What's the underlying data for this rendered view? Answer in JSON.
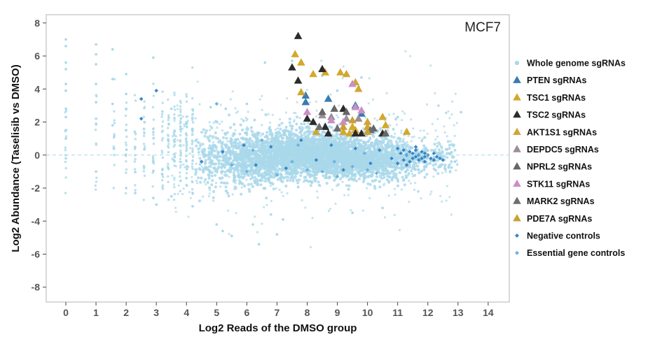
{
  "chart_data": {
    "type": "scatter",
    "panel_label": "MCF7",
    "xlabel": "Log2 Reads of the DMSO group",
    "ylabel": "Log2 Abundance (Taselisib vs DMSO)",
    "xlim": [
      -0.65,
      14.7
    ],
    "ylim": [
      -8.9,
      8.5
    ],
    "x_ticks": [
      0,
      1,
      2,
      3,
      4,
      5,
      6,
      7,
      8,
      9,
      10,
      11,
      12,
      13,
      14
    ],
    "y_ticks": [
      8,
      6,
      4,
      2,
      0,
      -2,
      -4,
      -6,
      -8
    ],
    "reference_line_y": 0,
    "grid": false,
    "legend_position": "right",
    "series": [
      {
        "name": "Whole genome sgRNAs",
        "marker": "circle",
        "color": "#a9d8ea",
        "cloud": {
          "x_range": [
            0,
            13.1
          ],
          "core_center": [
            8.3,
            -0.1
          ],
          "core_spread": [
            1.9,
            0.65
          ]
        },
        "points": [
          [
            0,
            7
          ],
          [
            0,
            6.6
          ],
          [
            0,
            5.6
          ],
          [
            0,
            5.2
          ],
          [
            0,
            4.3
          ],
          [
            0,
            3.9
          ],
          [
            0,
            2.8
          ],
          [
            0,
            2.3
          ],
          [
            0,
            1.5
          ],
          [
            0,
            1.0
          ],
          [
            0,
            -0.2
          ],
          [
            1,
            6.7
          ],
          [
            1,
            6.1
          ],
          [
            1,
            5.5
          ],
          [
            1,
            4.3
          ],
          [
            1,
            3.2
          ],
          [
            1,
            2.2
          ],
          [
            1,
            1.9
          ],
          [
            1,
            -1.0
          ],
          [
            1.55,
            6.4
          ],
          [
            1.55,
            4.6
          ],
          [
            1.55,
            3.1
          ],
          [
            1.55,
            1.8
          ],
          [
            2,
            4.9
          ],
          [
            2,
            3.7
          ],
          [
            2,
            2.8
          ],
          [
            2,
            1.5
          ],
          [
            2,
            -2
          ],
          [
            2.3,
            -2.3
          ],
          [
            2.9,
            5.9
          ],
          [
            2.9,
            -2.6
          ],
          [
            3.0,
            -3
          ],
          [
            3.5,
            -2.5
          ],
          [
            4.2,
            -3.1
          ],
          [
            5.0,
            -4.2
          ],
          [
            5.2,
            -4.6
          ],
          [
            5.5,
            -4.9
          ],
          [
            6.2,
            -4.2
          ],
          [
            6.4,
            -5.4
          ],
          [
            6.8,
            -3.6
          ],
          [
            7.0,
            -4.8
          ],
          [
            7.2,
            -3.9
          ],
          [
            6.6,
            5.6
          ],
          [
            7.5,
            5.7
          ],
          [
            9.8,
            4.7
          ],
          [
            13.1,
            2.6
          ],
          [
            12.9,
            -0.4
          ],
          [
            12.7,
            0.1
          ],
          [
            5.3,
            2.8
          ],
          [
            6.0,
            3.1
          ],
          [
            4.8,
            2.9
          ],
          [
            8.5,
            4.8
          ],
          [
            9.0,
            3.9
          ],
          [
            11.0,
            2.3
          ],
          [
            3.5,
            2.8
          ],
          [
            4.0,
            -1.4
          ],
          [
            10.5,
            -3.2
          ],
          [
            9.5,
            -3.5
          ]
        ]
      },
      {
        "name": "PTEN sgRNAs",
        "marker": "triangle",
        "color": "#3a7cb0",
        "points": [
          [
            7.95,
            3.2
          ],
          [
            7.95,
            3.6
          ],
          [
            8.7,
            3.4
          ],
          [
            9.6,
            3.0
          ],
          [
            9.8,
            2.5
          ]
        ]
      },
      {
        "name": "TSC1 sgRNAs",
        "marker": "triangle",
        "color": "#d4a82c",
        "points": [
          [
            7.6,
            6.1
          ],
          [
            7.8,
            5.6
          ],
          [
            8.2,
            4.9
          ],
          [
            8.6,
            5.0
          ],
          [
            9.1,
            5.0
          ],
          [
            9.2,
            1.4
          ],
          [
            9.4,
            1.3
          ],
          [
            9.5,
            1.7
          ],
          [
            9.6,
            1.5
          ],
          [
            10.5,
            2.3
          ],
          [
            10.6,
            1.8
          ],
          [
            11.3,
            1.4
          ]
        ]
      },
      {
        "name": "TSC2 sgRNAs",
        "marker": "triangle",
        "color": "#2b2b2b",
        "points": [
          [
            7.7,
            7.2
          ],
          [
            7.5,
            5.3
          ],
          [
            7.7,
            4.5
          ],
          [
            8.0,
            2.2
          ],
          [
            8.2,
            2.0
          ],
          [
            8.5,
            5.2
          ],
          [
            8.6,
            1.7
          ],
          [
            8.7,
            1.3
          ],
          [
            9.2,
            2.8
          ],
          [
            9.6,
            1.3
          ],
          [
            9.8,
            1.3
          ],
          [
            10.5,
            1.3
          ]
        ]
      },
      {
        "name": "AKT1S1 sgRNAs",
        "marker": "triangle",
        "color": "#d0a634",
        "points": [
          [
            7.8,
            3.8
          ],
          [
            8.3,
            1.4
          ],
          [
            9.3,
            4.9
          ],
          [
            9.6,
            4.4
          ],
          [
            9.7,
            4.0
          ],
          [
            10.0,
            2.0
          ],
          [
            10.0,
            1.7
          ]
        ]
      },
      {
        "name": "DEPDC5 sgRNAs",
        "marker": "triangle",
        "color": "#9b8e99",
        "points": [
          [
            8.5,
            2.4
          ],
          [
            8.8,
            2.3
          ],
          [
            9.3,
            2.2
          ],
          [
            9.7,
            2.2
          ]
        ]
      },
      {
        "name": "NPRL2 sgRNAs",
        "marker": "triangle",
        "color": "#666666",
        "points": [
          [
            8.5,
            2.6
          ],
          [
            8.9,
            2.8
          ],
          [
            9.3,
            2.6
          ],
          [
            10.2,
            1.6
          ],
          [
            10.6,
            1.3
          ]
        ]
      },
      {
        "name": "STK11 sgRNAs",
        "marker": "triangle",
        "color": "#c98fc7",
        "points": [
          [
            8.0,
            2.6
          ],
          [
            8.8,
            2.1
          ],
          [
            9.2,
            2.0
          ],
          [
            9.6,
            2.9
          ],
          [
            9.8,
            2.7
          ],
          [
            9.5,
            4.3
          ]
        ]
      },
      {
        "name": "MARK2 sgRNAs",
        "marker": "triangle",
        "color": "#6e6e6e",
        "points": [
          [
            8.4,
            1.7
          ],
          [
            9.0,
            1.6
          ],
          [
            10.1,
            1.5
          ]
        ]
      },
      {
        "name": "PDE7A sgRNAs",
        "marker": "triangle",
        "color": "#c9a133",
        "points": [
          [
            9.2,
            1.7
          ],
          [
            9.5,
            2.1
          ],
          [
            10.0,
            1.4
          ]
        ]
      },
      {
        "name": "Negative controls",
        "marker": "diamond",
        "color": "#3b85c4",
        "points": [
          [
            2.5,
            3.4
          ],
          [
            2.5,
            2.2
          ],
          [
            3.0,
            3.9
          ],
          [
            4.5,
            -0.4
          ],
          [
            5.2,
            0.2
          ],
          [
            5.9,
            0.6
          ],
          [
            6.3,
            -0.6
          ],
          [
            6.8,
            0.5
          ],
          [
            7.3,
            -0.8
          ],
          [
            7.8,
            0.9
          ],
          [
            8.3,
            -0.3
          ],
          [
            8.8,
            0.6
          ],
          [
            9.2,
            -0.9
          ],
          [
            9.6,
            0.4
          ],
          [
            10.1,
            -0.5
          ],
          [
            10.4,
            0.3
          ],
          [
            10.8,
            -0.2
          ],
          [
            11.0,
            -0.5
          ],
          [
            11.1,
            0.1
          ],
          [
            11.2,
            0.3
          ],
          [
            11.2,
            -0.3
          ],
          [
            11.3,
            0.0
          ],
          [
            11.4,
            -0.4
          ],
          [
            11.4,
            0.2
          ],
          [
            11.5,
            0.1
          ],
          [
            11.5,
            -0.2
          ],
          [
            11.6,
            0.3
          ],
          [
            11.6,
            -0.1
          ],
          [
            11.7,
            0.0
          ],
          [
            11.7,
            -0.3
          ],
          [
            11.8,
            0.2
          ],
          [
            11.8,
            -0.2
          ],
          [
            11.9,
            0.1
          ],
          [
            11.9,
            -0.1
          ],
          [
            12.0,
            0.0
          ],
          [
            12.1,
            -0.2
          ],
          [
            12.2,
            0.1
          ],
          [
            12.2,
            -0.3
          ],
          [
            12.3,
            -0.1
          ],
          [
            12.4,
            -0.2
          ],
          [
            12.5,
            -0.3
          ],
          [
            11.0,
            0.4
          ],
          [
            11.3,
            -0.6
          ],
          [
            11.6,
            0.5
          ],
          [
            11.9,
            -0.4
          ]
        ]
      },
      {
        "name": "Essential gene controls",
        "marker": "diamond",
        "color": "#6cb3e0",
        "points": [
          [
            5.5,
            -0.6
          ],
          [
            6.0,
            -1.0
          ],
          [
            6.5,
            0.9
          ],
          [
            7.0,
            -1.2
          ],
          [
            7.5,
            -0.4
          ],
          [
            8.0,
            -0.9
          ],
          [
            8.5,
            -1.0
          ],
          [
            9.0,
            -1.3
          ],
          [
            9.5,
            -0.7
          ],
          [
            10.0,
            -0.9
          ],
          [
            10.3,
            -1.1
          ],
          [
            6.2,
            0.3
          ],
          [
            7.7,
            0.6
          ],
          [
            8.9,
            -0.4
          ],
          [
            9.9,
            0.1
          ],
          [
            5.0,
            3.1
          ]
        ]
      }
    ]
  }
}
